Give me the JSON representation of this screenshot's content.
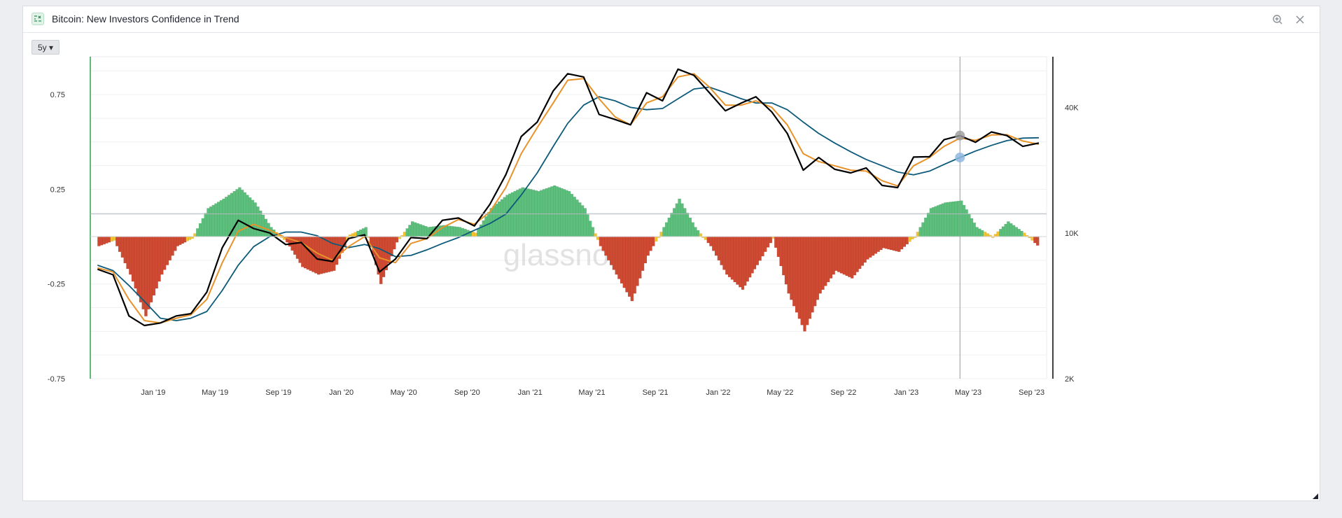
{
  "window": {
    "title": "Bitcoin: New Investors Confidence in Trend"
  },
  "toolbar": {
    "range_label": "5y ▾"
  },
  "icons": {
    "app": "chart-app-icon",
    "zoom": "zoom-in-icon",
    "close": "close-icon"
  },
  "watermark": "glassnode",
  "colors": {
    "positive": "#5cbf7c",
    "negative": "#cf4a32",
    "neutral": "#f2c231",
    "price": "#000000",
    "fast_ma": "#e8922a",
    "slow_ma": "#0d5a7a",
    "crosshair": "#999999",
    "left_axis_line": "#2ea04a"
  },
  "chart_data": {
    "type": "area",
    "title": "Bitcoin: New Investors Confidence in Trend",
    "x_range": [
      "2018-09-01",
      "2023-09-30"
    ],
    "x_ticks": [
      "Jan '19",
      "May '19",
      "Sep '19",
      "Jan '20",
      "May '20",
      "Sep '20",
      "Jan '21",
      "May '21",
      "Sep '21",
      "Jan '22",
      "May '22",
      "Sep '22",
      "Jan '23",
      "May '23",
      "Sep '23"
    ],
    "y_left": {
      "ticks": [
        "0.75",
        "0.25",
        "-0.25",
        "-0.75"
      ],
      "range": [
        -0.75,
        0.95
      ]
    },
    "y_right": {
      "ticks": [
        "40K",
        "10K",
        "2K"
      ],
      "scale": "log",
      "range": [
        2000,
        70000
      ]
    },
    "grid": true,
    "oscillator": {
      "name": "",
      "months": [
        "2018-09",
        "2018-10",
        "2018-11",
        "2018-12",
        "2019-01",
        "2019-02",
        "2019-03",
        "2019-04",
        "2019-05",
        "2019-06",
        "2019-07",
        "2019-08",
        "2019-09",
        "2019-10",
        "2019-11",
        "2019-12",
        "2020-01",
        "2020-02",
        "2020-03",
        "2020-04",
        "2020-05",
        "2020-06",
        "2020-07",
        "2020-08",
        "2020-09",
        "2020-10",
        "2020-11",
        "2020-12",
        "2021-01",
        "2021-02",
        "2021-03",
        "2021-04",
        "2021-05",
        "2021-06",
        "2021-07",
        "2021-08",
        "2021-09",
        "2021-10",
        "2021-11",
        "2021-12",
        "2022-01",
        "2022-02",
        "2022-03",
        "2022-04",
        "2022-05",
        "2022-06",
        "2022-07",
        "2022-08",
        "2022-09",
        "2022-10",
        "2022-11",
        "2022-12",
        "2023-01",
        "2023-02",
        "2023-03",
        "2023-04",
        "2023-05",
        "2023-06",
        "2023-07",
        "2023-08",
        "2023-09"
      ],
      "values": [
        -0.05,
        -0.02,
        -0.2,
        -0.42,
        -0.2,
        -0.05,
        -0.01,
        0.15,
        0.2,
        0.26,
        0.18,
        0.05,
        -0.03,
        -0.16,
        -0.2,
        -0.18,
        0.01,
        0.05,
        -0.25,
        -0.03,
        0.08,
        0.05,
        0.06,
        0.05,
        0.02,
        0.15,
        0.22,
        0.26,
        0.24,
        0.27,
        0.24,
        0.15,
        -0.05,
        -0.2,
        -0.34,
        -0.1,
        0.05,
        0.2,
        0.05,
        -0.05,
        -0.2,
        -0.28,
        -0.15,
        -0.01,
        -0.3,
        -0.5,
        -0.3,
        -0.18,
        -0.22,
        -0.12,
        -0.06,
        -0.08,
        0.0,
        0.15,
        0.18,
        0.19,
        0.05,
        0.0,
        0.08,
        0.02,
        -0.06
      ]
    },
    "series": [
      {
        "name": "",
        "values": [
          6700,
          6300,
          4000,
          3600,
          3700,
          4000,
          4100,
          5200,
          8500,
          11500,
          10500,
          10000,
          8800,
          9000,
          7500,
          7300,
          9400,
          9800,
          6500,
          7500,
          9500,
          9400,
          11500,
          11800,
          10800,
          13700,
          19000,
          29000,
          34000,
          48000,
          58000,
          56000,
          37000,
          35000,
          33000,
          47000,
          43000,
          61000,
          57000,
          47000,
          38500,
          42000,
          45000,
          38000,
          30000,
          20000,
          23000,
          20200,
          19400,
          20500,
          16900,
          16500,
          23100,
          23200,
          28000,
          29300,
          27200,
          30500,
          29300,
          26000,
          27000
        ]
      },
      {
        "name": "",
        "values": [
          6800,
          6500,
          4800,
          3800,
          3700,
          3900,
          4050,
          4800,
          7200,
          10200,
          11000,
          10300,
          9500,
          9000,
          8000,
          7400,
          8600,
          9600,
          7600,
          7200,
          8900,
          9400,
          10600,
          11600,
          11000,
          12600,
          16500,
          24000,
          32000,
          42000,
          54000,
          55000,
          44000,
          36000,
          33000,
          42000,
          45000,
          56000,
          58000,
          50000,
          41000,
          41000,
          43000,
          40000,
          33000,
          24000,
          22000,
          21000,
          20000,
          19800,
          17800,
          16800,
          21000,
          23000,
          26000,
          28500,
          27800,
          29500,
          29600,
          27600,
          26600
        ]
      },
      {
        "name": "",
        "values": [
          7000,
          6600,
          5600,
          4700,
          3900,
          3800,
          3900,
          4200,
          5300,
          7000,
          8600,
          9600,
          10100,
          10100,
          9700,
          8900,
          8500,
          8800,
          8400,
          7700,
          7800,
          8300,
          8900,
          9500,
          10300,
          11100,
          12300,
          15200,
          19400,
          26000,
          33500,
          41000,
          45000,
          43000,
          40000,
          39000,
          39500,
          44000,
          49000,
          50000,
          47000,
          44000,
          42000,
          42000,
          39000,
          34000,
          30000,
          27000,
          24500,
          22500,
          21000,
          19600,
          19000,
          19800,
          21300,
          23000,
          24700,
          26300,
          27700,
          28500,
          28600
        ]
      }
    ],
    "cursor": {
      "date": "2023-04-15",
      "price": "29300",
      "trend": "23000"
    }
  }
}
